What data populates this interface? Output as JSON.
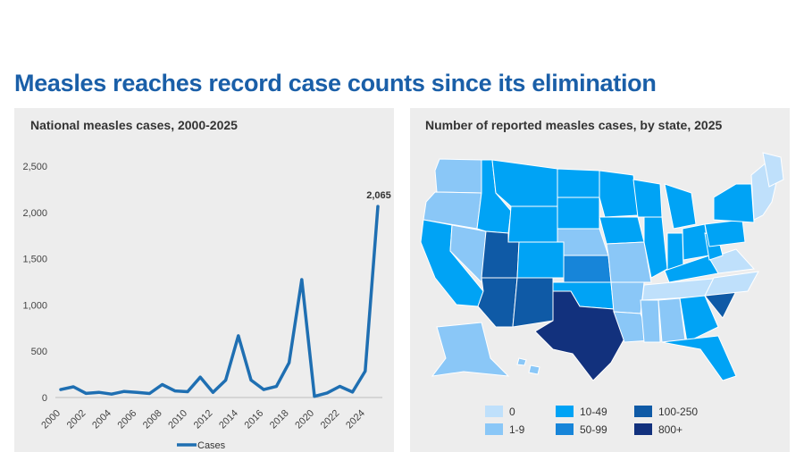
{
  "title": "Measles reaches record case counts since its elimination",
  "left_panel": {
    "title": "National measles cases, 2000-2025"
  },
  "right_panel": {
    "title": "Number of reported measles cases, by state, 2025"
  },
  "colors": {
    "line": "#1f6fb2",
    "title": "#1a5fa8",
    "panel": "#ededed",
    "map_bins": [
      "#bfe0fb",
      "#8ac7f7",
      "#00a3f5",
      "#1785d9",
      "#0f5aa6",
      "#12317d"
    ]
  },
  "chart_data": [
    {
      "type": "line",
      "title": "National measles cases, 2000-2025",
      "xlabel": "",
      "ylabel": "",
      "x": [
        2000,
        2001,
        2002,
        2003,
        2004,
        2005,
        2006,
        2007,
        2008,
        2009,
        2010,
        2011,
        2012,
        2013,
        2014,
        2015,
        2016,
        2017,
        2018,
        2019,
        2020,
        2021,
        2022,
        2023,
        2024,
        2025
      ],
      "x_tick_labels": [
        "2000",
        "2002",
        "2004",
        "2006",
        "2008",
        "2010",
        "2012",
        "2014",
        "2016",
        "2018",
        "2020",
        "2022",
        "2024"
      ],
      "y_tick_labels": [
        "0",
        "500",
        "1,000",
        "1,500",
        "2,000",
        "2,500"
      ],
      "ylim": [
        0,
        2500
      ],
      "series": [
        {
          "name": "Cases",
          "values": [
            86,
            116,
            44,
            56,
            37,
            66,
            55,
            43,
            140,
            71,
            63,
            220,
            55,
            187,
            667,
            188,
            86,
            120,
            375,
            1274,
            13,
            49,
            121,
            59,
            285,
            2065
          ]
        }
      ],
      "annotations": [
        {
          "x": 2025,
          "label": "2,065"
        }
      ],
      "legend": {
        "position": "bottom",
        "label": "Cases"
      },
      "grid": false
    },
    {
      "type": "choropleth",
      "title": "Number of reported measles cases, by state, 2025",
      "legend_bins": [
        "0",
        "1-9",
        "10-49",
        "50-99",
        "100-250",
        "800+"
      ],
      "highlighted_states": [
        {
          "state": "Texas",
          "bin": "800+"
        },
        {
          "state": "South Carolina",
          "bin": "100-250"
        },
        {
          "state": "Utah",
          "bin": "100-250"
        },
        {
          "state": "Arizona",
          "bin": "100-250"
        },
        {
          "state": "New Mexico",
          "bin": "100-250"
        },
        {
          "state": "Kansas",
          "bin": "50-99"
        }
      ]
    }
  ]
}
